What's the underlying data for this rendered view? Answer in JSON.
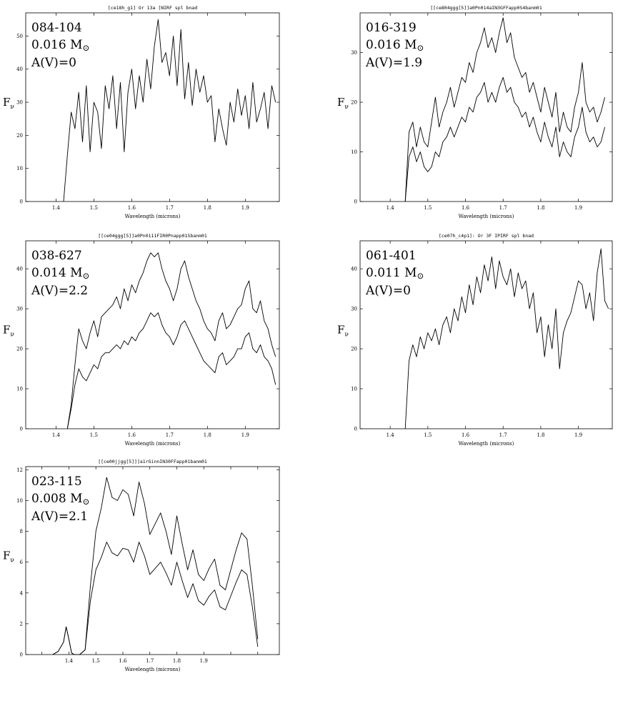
{
  "ylabel": "F",
  "ylabel_sub": "ν",
  "chart_data": [
    {
      "type": "line",
      "title": "[ce18h_g1] Or 13a [NIRF spl bnad",
      "name": "084-104",
      "mass": "0.016 M",
      "av": "A(V)=0",
      "xlabel": "Wavelength (microns)",
      "xlim": [
        1.32,
        1.99
      ],
      "ylim": [
        0,
        57
      ],
      "xticks": [
        1.4,
        1.5,
        1.6,
        1.7,
        1.8,
        1.9
      ],
      "xtick_labels": [
        "1.4",
        "1.5",
        "1.6",
        "1.7",
        "1.8",
        "1.9"
      ],
      "yticks": [
        0,
        10,
        20,
        30,
        40,
        50
      ],
      "ytick_labels": [
        "0",
        "10",
        "20",
        "30",
        "40",
        "50"
      ],
      "series": [
        {
          "x": [
            1.42,
            1.43,
            1.44,
            1.45,
            1.46,
            1.47,
            1.48,
            1.49,
            1.5,
            1.51,
            1.52,
            1.53,
            1.54,
            1.55,
            1.56,
            1.57,
            1.58,
            1.59,
            1.6,
            1.61,
            1.62,
            1.63,
            1.64,
            1.65,
            1.66,
            1.67,
            1.68,
            1.69,
            1.7,
            1.71,
            1.72,
            1.73,
            1.74,
            1.75,
            1.76,
            1.77,
            1.78,
            1.79,
            1.8,
            1.81,
            1.82,
            1.83,
            1.84,
            1.85,
            1.86,
            1.87,
            1.88,
            1.89,
            1.9,
            1.91,
            1.92,
            1.93,
            1.94,
            1.95,
            1.96,
            1.97,
            1.98
          ],
          "y": [
            0,
            14,
            27,
            22,
            33,
            18,
            35,
            15,
            30,
            27,
            16,
            35,
            28,
            38,
            22,
            36,
            15,
            33,
            40,
            28,
            38,
            30,
            43,
            34,
            47,
            55,
            42,
            45,
            38,
            50,
            35,
            52,
            31,
            42,
            29,
            40,
            33,
            38,
            30,
            32,
            18,
            28,
            22,
            17,
            30,
            24,
            34,
            26,
            32,
            22,
            36,
            24,
            28,
            33,
            22,
            35,
            30
          ]
        }
      ]
    },
    {
      "type": "line",
      "title": "[[ce804ggg[5]]a0Pn014aIN3GFFapp0S4banm01",
      "name": "016-319",
      "mass": "0.016 M",
      "av": "A(V)=1.9",
      "xlabel": "Wavelength (microns)",
      "xlim": [
        1.32,
        1.99
      ],
      "ylim": [
        0,
        38
      ],
      "xticks": [
        1.4,
        1.5,
        1.6,
        1.7,
        1.8,
        1.9
      ],
      "xtick_labels": [
        "1.4",
        "1.5",
        "1.6",
        "1.7",
        "1.8",
        "1.9"
      ],
      "yticks": [
        0,
        10,
        20,
        30
      ],
      "ytick_labels": [
        "0",
        "10",
        "20",
        "30"
      ],
      "series": [
        {
          "x": [
            1.44,
            1.45,
            1.46,
            1.47,
            1.48,
            1.49,
            1.5,
            1.51,
            1.52,
            1.53,
            1.54,
            1.55,
            1.56,
            1.57,
            1.58,
            1.59,
            1.6,
            1.61,
            1.62,
            1.63,
            1.64,
            1.65,
            1.66,
            1.67,
            1.68,
            1.69,
            1.7,
            1.71,
            1.72,
            1.73,
            1.74,
            1.75,
            1.76,
            1.77,
            1.78,
            1.79,
            1.8,
            1.81,
            1.82,
            1.83,
            1.84,
            1.85,
            1.86,
            1.87,
            1.88,
            1.89,
            1.9,
            1.91,
            1.92,
            1.93,
            1.94,
            1.95,
            1.96,
            1.97
          ],
          "y": [
            0,
            14,
            16,
            11,
            15,
            12,
            11,
            16,
            21,
            15,
            18,
            20,
            23,
            19,
            22,
            25,
            24,
            28,
            26,
            30,
            32,
            35,
            31,
            33,
            30,
            34,
            37,
            32,
            34,
            29,
            27,
            25,
            26,
            22,
            24,
            21,
            18,
            23,
            20,
            17,
            22,
            14,
            18,
            15,
            14,
            19,
            22,
            28,
            20,
            18,
            19,
            16,
            18,
            21
          ]
        },
        {
          "x": [
            1.44,
            1.45,
            1.46,
            1.47,
            1.48,
            1.49,
            1.5,
            1.51,
            1.52,
            1.53,
            1.54,
            1.55,
            1.56,
            1.57,
            1.58,
            1.59,
            1.6,
            1.61,
            1.62,
            1.63,
            1.64,
            1.65,
            1.66,
            1.67,
            1.68,
            1.69,
            1.7,
            1.71,
            1.72,
            1.73,
            1.74,
            1.75,
            1.76,
            1.77,
            1.78,
            1.79,
            1.8,
            1.81,
            1.82,
            1.83,
            1.84,
            1.85,
            1.86,
            1.87,
            1.88,
            1.89,
            1.9,
            1.91,
            1.92,
            1.93,
            1.94,
            1.95,
            1.96,
            1.97
          ],
          "y": [
            0,
            9,
            11,
            8,
            10,
            7,
            6,
            7,
            10,
            9,
            12,
            13,
            15,
            13,
            15,
            17,
            16,
            19,
            18,
            21,
            22,
            24,
            20,
            22,
            20,
            23,
            25,
            22,
            23,
            20,
            19,
            17,
            18,
            15,
            17,
            14,
            12,
            16,
            13,
            11,
            15,
            9,
            12,
            10,
            9,
            13,
            15,
            19,
            14,
            12,
            13,
            11,
            12,
            15
          ]
        }
      ]
    },
    {
      "type": "line",
      "title": "[[ce04ggg[5]]a0Pn0111FIR0Pnapp01Sbanm01",
      "name": "038-627",
      "mass": "0.014 M",
      "av": "A(V)=2.2",
      "xlabel": "Wavelength (microns)",
      "xlim": [
        1.32,
        1.99
      ],
      "ylim": [
        0,
        47
      ],
      "xticks": [
        1.4,
        1.5,
        1.6,
        1.7,
        1.8,
        1.9
      ],
      "xtick_labels": [
        "1.4",
        "1.5",
        "1.6",
        "1.7",
        "1.8",
        "1.9"
      ],
      "yticks": [
        0,
        10,
        20,
        30,
        40
      ],
      "ytick_labels": [
        "0",
        "10",
        "20",
        "30",
        "40"
      ],
      "series": [
        {
          "x": [
            1.43,
            1.44,
            1.45,
            1.46,
            1.47,
            1.48,
            1.49,
            1.5,
            1.51,
            1.52,
            1.53,
            1.54,
            1.55,
            1.56,
            1.57,
            1.58,
            1.59,
            1.6,
            1.61,
            1.62,
            1.63,
            1.64,
            1.65,
            1.66,
            1.67,
            1.68,
            1.69,
            1.7,
            1.71,
            1.72,
            1.73,
            1.74,
            1.75,
            1.76,
            1.77,
            1.78,
            1.79,
            1.8,
            1.81,
            1.82,
            1.83,
            1.84,
            1.85,
            1.86,
            1.87,
            1.88,
            1.89,
            1.9,
            1.91,
            1.92,
            1.93,
            1.94,
            1.95,
            1.96,
            1.97,
            1.98
          ],
          "y": [
            0,
            6,
            16,
            25,
            22,
            20,
            24,
            27,
            23,
            28,
            29,
            30,
            31,
            33,
            30,
            35,
            32,
            36,
            34,
            37,
            39,
            42,
            44,
            43,
            44,
            40,
            37,
            35,
            32,
            35,
            40,
            42,
            38,
            35,
            32,
            30,
            27,
            25,
            24,
            22,
            27,
            29,
            25,
            26,
            28,
            30,
            31,
            35,
            37,
            30,
            29,
            32,
            27,
            25,
            21,
            18
          ]
        },
        {
          "x": [
            1.43,
            1.44,
            1.45,
            1.46,
            1.47,
            1.48,
            1.49,
            1.5,
            1.51,
            1.52,
            1.53,
            1.54,
            1.55,
            1.56,
            1.57,
            1.58,
            1.59,
            1.6,
            1.61,
            1.62,
            1.63,
            1.64,
            1.65,
            1.66,
            1.67,
            1.68,
            1.69,
            1.7,
            1.71,
            1.72,
            1.73,
            1.74,
            1.75,
            1.76,
            1.77,
            1.78,
            1.79,
            1.8,
            1.81,
            1.82,
            1.83,
            1.84,
            1.85,
            1.86,
            1.87,
            1.88,
            1.89,
            1.9,
            1.91,
            1.92,
            1.93,
            1.94,
            1.95,
            1.96,
            1.97,
            1.98
          ],
          "y": [
            0,
            5,
            11,
            15,
            13,
            12,
            14,
            16,
            15,
            18,
            19,
            19,
            20,
            21,
            20,
            22,
            21,
            23,
            22,
            24,
            25,
            27,
            29,
            28,
            29,
            26,
            24,
            23,
            21,
            23,
            26,
            27,
            25,
            23,
            21,
            19,
            17,
            16,
            15,
            14,
            18,
            19,
            16,
            17,
            18,
            20,
            20,
            23,
            24,
            20,
            19,
            21,
            18,
            17,
            15,
            11
          ]
        }
      ]
    },
    {
      "type": "line",
      "title": "[ce07h_c4p1]: Or 3F IPIRF spl bnad",
      "name": "061-401",
      "mass": "0.011 M",
      "av": "A(V)=0",
      "xlabel": "Wavelength (microns)",
      "xlim": [
        1.32,
        1.99
      ],
      "ylim": [
        0,
        47
      ],
      "xticks": [
        1.4,
        1.5,
        1.6,
        1.7,
        1.8,
        1.9
      ],
      "xtick_labels": [
        "1.4",
        "1.5",
        "1.6",
        "1.7",
        "1.8",
        "1.9"
      ],
      "yticks": [
        0,
        10,
        20,
        30,
        40
      ],
      "ytick_labels": [
        "0",
        "10",
        "20",
        "30",
        "40"
      ],
      "series": [
        {
          "x": [
            1.44,
            1.45,
            1.46,
            1.47,
            1.48,
            1.49,
            1.5,
            1.51,
            1.52,
            1.53,
            1.54,
            1.55,
            1.56,
            1.57,
            1.58,
            1.59,
            1.6,
            1.61,
            1.62,
            1.63,
            1.64,
            1.65,
            1.66,
            1.67,
            1.68,
            1.69,
            1.7,
            1.71,
            1.72,
            1.73,
            1.74,
            1.75,
            1.76,
            1.77,
            1.78,
            1.79,
            1.8,
            1.81,
            1.82,
            1.83,
            1.84,
            1.85,
            1.86,
            1.87,
            1.88,
            1.89,
            1.9,
            1.91,
            1.92,
            1.93,
            1.94,
            1.95,
            1.96,
            1.97,
            1.98
          ],
          "y": [
            0,
            17,
            21,
            18,
            23,
            20,
            24,
            22,
            25,
            21,
            26,
            28,
            24,
            30,
            27,
            33,
            29,
            36,
            31,
            38,
            34,
            41,
            37,
            43,
            35,
            42,
            38,
            36,
            40,
            33,
            39,
            35,
            37,
            30,
            34,
            24,
            28,
            18,
            26,
            20,
            30,
            15,
            24,
            27,
            29,
            33,
            37,
            36,
            30,
            34,
            27,
            39,
            45,
            32,
            30
          ]
        }
      ]
    },
    {
      "type": "line",
      "title": "[[ce00jjgg[5]]]a1rGinnIN30FFapp01banm01",
      "name": "023-115",
      "mass": "0.008 M",
      "av": "A(V)=2.1",
      "xlabel": "Wavelength (microns)",
      "xlim": [
        1.52,
        1.99
      ],
      "ylim": [
        0,
        12.2
      ],
      "xticks": [
        1.55,
        1.6,
        1.65,
        1.7,
        1.75,
        1.8,
        1.85,
        1.9,
        1.95
      ],
      "xtick_labels": [
        "1.4",
        "1.5",
        "1.6",
        "1.7",
        "1.8",
        "1.9"
      ],
      "xtick_label_at": [
        1.6,
        1.65,
        1.7,
        1.75,
        1.8,
        1.85
      ],
      "yticks": [
        0,
        2,
        4,
        6,
        8,
        10,
        12
      ],
      "ytick_labels": [
        "0",
        "2",
        "4",
        "6",
        "8",
        "10",
        "12"
      ],
      "series": [
        {
          "x": [
            1.57,
            1.58,
            1.59,
            1.595,
            1.6,
            1.605,
            1.61,
            1.62,
            1.63,
            1.64,
            1.65,
            1.66,
            1.67,
            1.68,
            1.69,
            1.7,
            1.71,
            1.72,
            1.73,
            1.74,
            1.75,
            1.76,
            1.77,
            1.78,
            1.79,
            1.8,
            1.81,
            1.82,
            1.83,
            1.84,
            1.85,
            1.86,
            1.87,
            1.88,
            1.89,
            1.9,
            1.91,
            1.92,
            1.93,
            1.94,
            1.95
          ],
          "y": [
            0,
            0.2,
            0.8,
            1.8,
            1.0,
            0.1,
            0,
            0,
            0.3,
            4.5,
            8.0,
            9.5,
            11.5,
            10.2,
            10.0,
            10.7,
            10.4,
            9.0,
            11.2,
            9.8,
            7.8,
            8.5,
            9.2,
            8.0,
            6.5,
            9.0,
            7.2,
            5.5,
            6.8,
            5.2,
            4.8,
            5.6,
            6.2,
            4.5,
            4.2,
            5.5,
            6.8,
            7.9,
            7.5,
            4.5,
            1.0
          ]
        },
        {
          "x": [
            1.57,
            1.58,
            1.59,
            1.595,
            1.6,
            1.605,
            1.61,
            1.62,
            1.63,
            1.64,
            1.65,
            1.66,
            1.67,
            1.68,
            1.69,
            1.7,
            1.71,
            1.72,
            1.73,
            1.74,
            1.75,
            1.76,
            1.77,
            1.78,
            1.79,
            1.8,
            1.81,
            1.82,
            1.83,
            1.84,
            1.85,
            1.86,
            1.87,
            1.88,
            1.89,
            1.9,
            1.91,
            1.92,
            1.93,
            1.94,
            1.95
          ],
          "y": [
            0,
            0.2,
            0.8,
            1.8,
            1.0,
            0.1,
            0,
            0,
            0.3,
            3.5,
            5.5,
            6.3,
            7.3,
            6.6,
            6.4,
            6.9,
            6.8,
            6.0,
            7.3,
            6.4,
            5.2,
            5.6,
            6.0,
            5.3,
            4.5,
            6.0,
            4.8,
            3.7,
            4.6,
            3.5,
            3.2,
            3.8,
            4.2,
            3.1,
            2.9,
            3.8,
            4.7,
            5.5,
            5.2,
            3.1,
            0.5
          ]
        }
      ]
    }
  ]
}
